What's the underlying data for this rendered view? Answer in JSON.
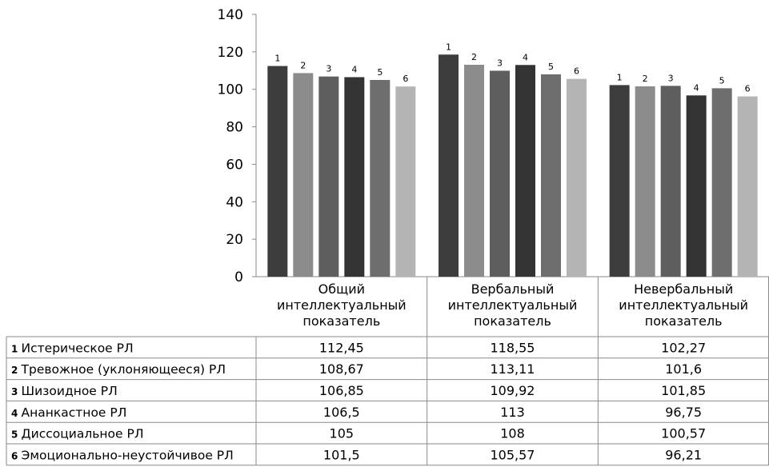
{
  "chart_data": {
    "type": "bar",
    "categories": [
      [
        "Общий",
        "интеллектуальный",
        "показатель"
      ],
      [
        "Вербальный",
        "интеллектуальный",
        "показатель"
      ],
      [
        "Невербальный",
        "интеллектуальный",
        "показатель"
      ]
    ],
    "ylim": [
      0,
      140
    ],
    "yticks": [
      0,
      20,
      40,
      60,
      80,
      100,
      120,
      140
    ],
    "grid": false,
    "series": [
      {
        "num": "1",
        "name": "Истерическое РЛ",
        "color": "#3d3d3d",
        "values": [
          112.45,
          118.55,
          102.27
        ],
        "labels": [
          "112,45",
          "118,55",
          "102,27"
        ]
      },
      {
        "num": "2",
        "name": "Тревожное (уклоняющееся) РЛ",
        "color": "#8c8c8c",
        "values": [
          108.67,
          113.11,
          101.6
        ],
        "labels": [
          "108,67",
          "113,11",
          "101,6"
        ]
      },
      {
        "num": "3",
        "name": "Шизоидное РЛ",
        "color": "#5e5e5e",
        "values": [
          106.85,
          109.92,
          101.85
        ],
        "labels": [
          "106,85",
          "109,92",
          "101,85"
        ]
      },
      {
        "num": "4",
        "name": "Ананкастное РЛ",
        "color": "#333333",
        "values": [
          106.5,
          113,
          96.75
        ],
        "labels": [
          "106,5",
          "113",
          "96,75"
        ]
      },
      {
        "num": "5",
        "name": "Диссоциальное РЛ",
        "color": "#6e6e6e",
        "values": [
          105,
          108,
          100.57
        ],
        "labels": [
          "105",
          "108",
          "100,57"
        ]
      },
      {
        "num": "6",
        "name": "Эмоционально-неустойчивое РЛ",
        "color": "#b4b4b4",
        "values": [
          101.5,
          105.57,
          96.21
        ],
        "labels": [
          "101,5",
          "105,57",
          "96,21"
        ]
      }
    ]
  }
}
